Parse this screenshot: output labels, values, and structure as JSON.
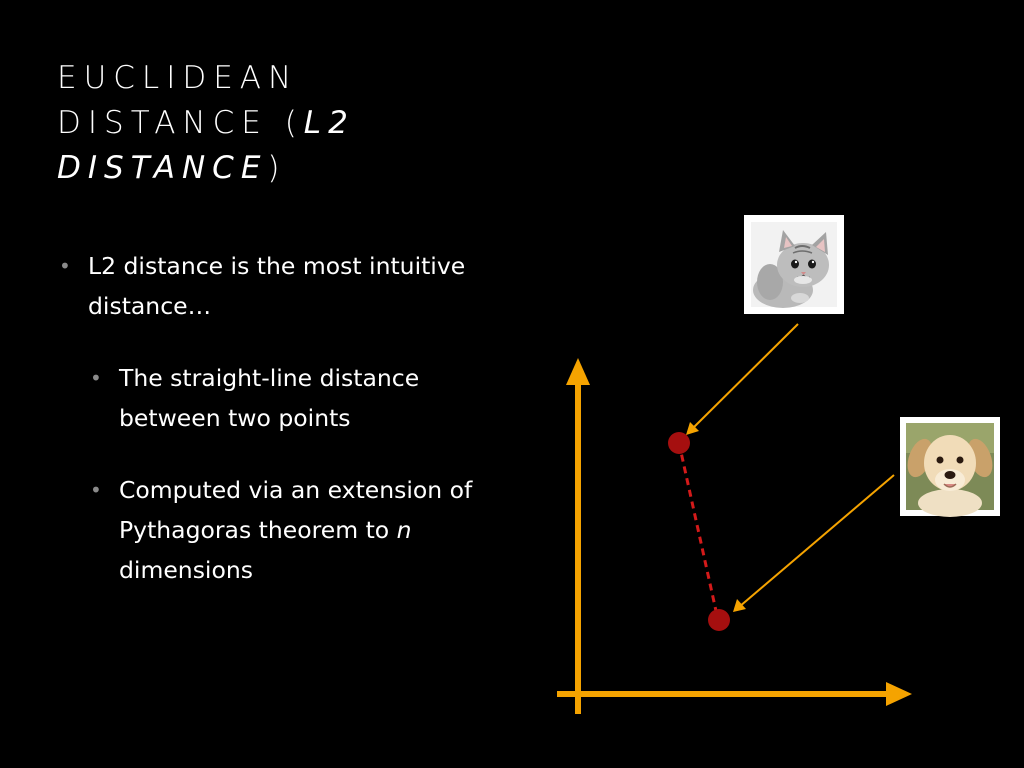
{
  "slide": {
    "title": {
      "line1": "EUCLIDEAN",
      "line2_main": "DISTANCE (",
      "line2_italic": "L2",
      "line3_italic": "DISTANCE",
      "line3_close": ")"
    },
    "bullets": [
      {
        "text": "L2 distance is the most intuitive distance…",
        "sub": [
          {
            "text": "The straight-line distance between two points"
          },
          {
            "text_before": "Computed via an extension of Pythagoras theorem to ",
            "text_italic": "n",
            "text_after": " dimensions"
          }
        ]
      }
    ],
    "bullet_glyph": "•"
  },
  "diagram": {
    "colors": {
      "axis": "#f5a300",
      "arrow": "#f5a300",
      "point": "#a50f0f",
      "distance_line": "#d41a1a",
      "frame": "#ffffff"
    },
    "images": [
      {
        "name": "cat",
        "icon": "kitten-photo"
      },
      {
        "name": "dog",
        "icon": "puppy-photo"
      }
    ]
  }
}
